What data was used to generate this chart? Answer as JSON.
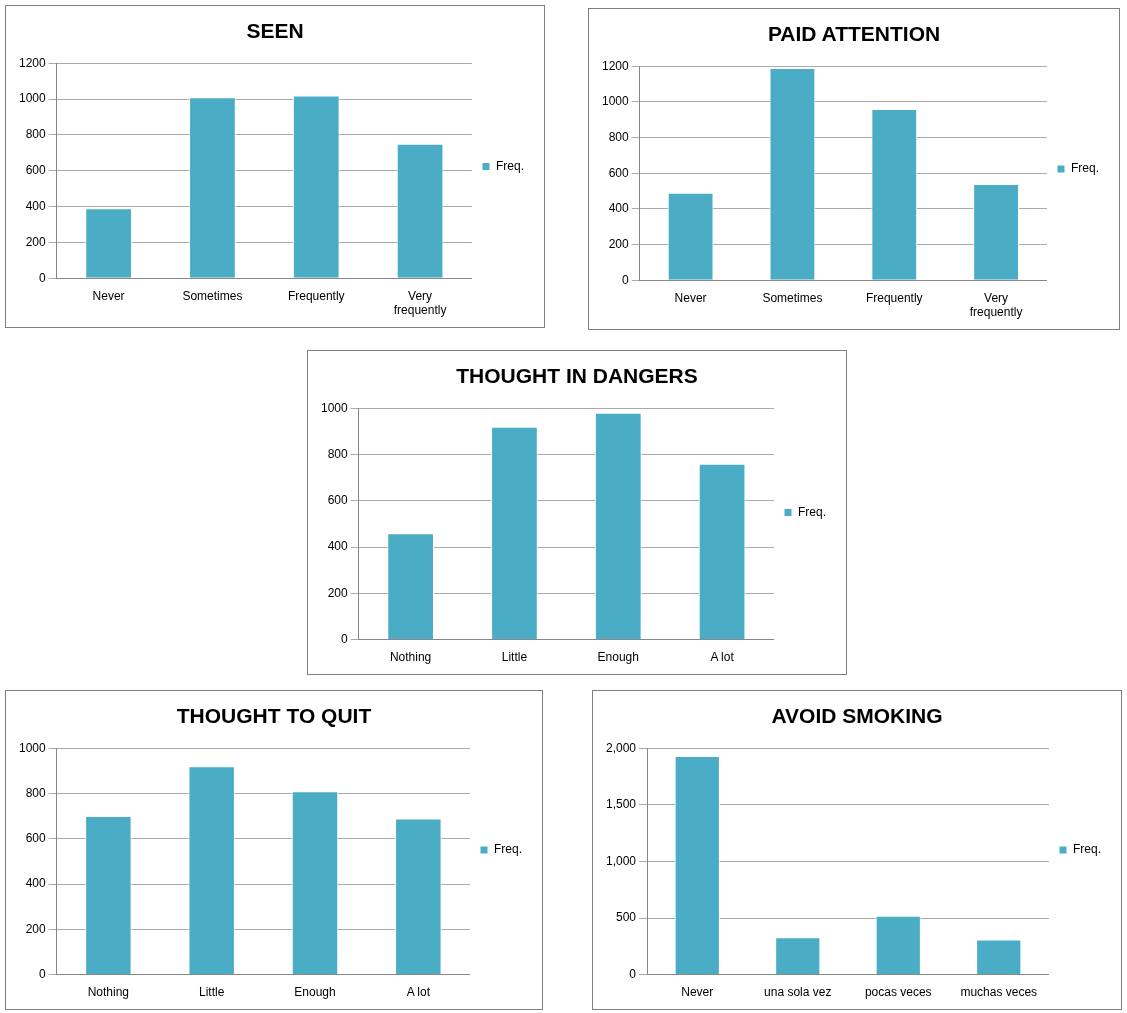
{
  "chart_data": [
    {
      "type": "bar",
      "title": "SEEN",
      "categories": [
        "Never",
        "Sometimes",
        "Frequently",
        "Very frequently"
      ],
      "series": [
        {
          "name": "Freq.",
          "color": "#4bacc6",
          "values": [
            390,
            1010,
            1020,
            750
          ]
        }
      ],
      "ylim": [
        0,
        1200
      ],
      "yticks": [
        0,
        200,
        400,
        600,
        800,
        1000,
        1200
      ],
      "grid": "y",
      "legend": "right"
    },
    {
      "type": "bar",
      "title": "PAID ATTENTION",
      "categories": [
        "Never",
        "Sometimes",
        "Frequently",
        "Very frequently"
      ],
      "series": [
        {
          "name": "Freq.",
          "color": "#4bacc6",
          "values": [
            490,
            1190,
            960,
            540
          ]
        }
      ],
      "ylim": [
        0,
        1200
      ],
      "yticks": [
        0,
        200,
        400,
        600,
        800,
        1000,
        1200
      ],
      "grid": "y",
      "legend": "right"
    },
    {
      "type": "bar",
      "title": "THOUGHT IN DANGERS",
      "categories": [
        "Nothing",
        "Little",
        "Enough",
        "A lot"
      ],
      "series": [
        {
          "name": "Freq.",
          "color": "#4bacc6",
          "values": [
            460,
            920,
            980,
            760
          ]
        }
      ],
      "ylim": [
        0,
        1000
      ],
      "yticks": [
        0,
        200,
        400,
        600,
        800,
        1000
      ],
      "grid": "y",
      "legend": "right"
    },
    {
      "type": "bar",
      "title": "THOUGHT TO QUIT",
      "categories": [
        "Nothing",
        "Little",
        "Enough",
        "A lot"
      ],
      "series": [
        {
          "name": "Freq.",
          "color": "#4bacc6",
          "values": [
            700,
            920,
            810,
            690
          ]
        }
      ],
      "ylim": [
        0,
        1000
      ],
      "yticks": [
        0,
        200,
        400,
        600,
        800,
        1000
      ],
      "grid": "y",
      "legend": "right"
    },
    {
      "type": "bar",
      "title": "AVOID SMOKING",
      "categories": [
        "Never",
        "una sola vez",
        "pocas veces",
        "muchas veces"
      ],
      "series": [
        {
          "name": "Freq.",
          "color": "#4bacc6",
          "values": [
            1930,
            330,
            520,
            310
          ]
        }
      ],
      "ylim": [
        0,
        2000
      ],
      "yticks": [
        0,
        500,
        {
          "value": 1000,
          "label": "1,000"
        },
        {
          "value": 1500,
          "label": "1,500"
        },
        {
          "value": 2000,
          "label": "2,000"
        }
      ],
      "grid": "y",
      "legend": "right"
    }
  ]
}
